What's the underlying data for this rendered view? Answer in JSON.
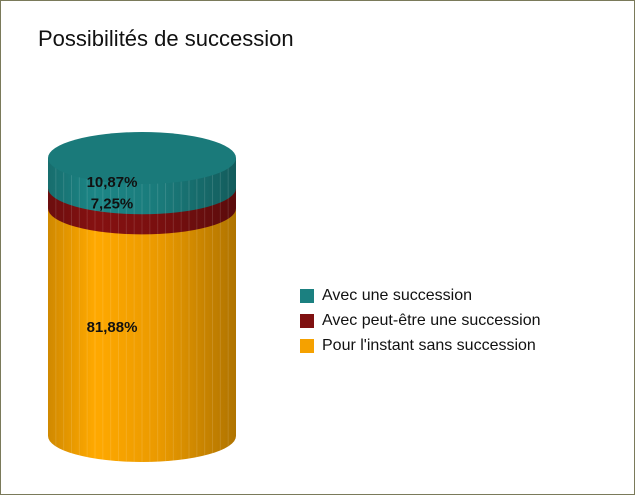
{
  "chart_data": {
    "type": "stacked-cylinder",
    "title": "Possibilités de succession",
    "series": [
      {
        "name": "Avec une succession",
        "color": "#1b8080",
        "values": [
          10.87
        ],
        "value_labels": [
          "10,87%"
        ]
      },
      {
        "name": "Avec peut-être une succession",
        "color": "#7f1010",
        "values": [
          7.25
        ],
        "value_labels": [
          "7,25%"
        ]
      },
      {
        "name": "Pour l'instant sans succession",
        "color": "#f5a100",
        "values": [
          81.88
        ],
        "value_labels": [
          "81,88%"
        ]
      }
    ],
    "legend": "right"
  }
}
